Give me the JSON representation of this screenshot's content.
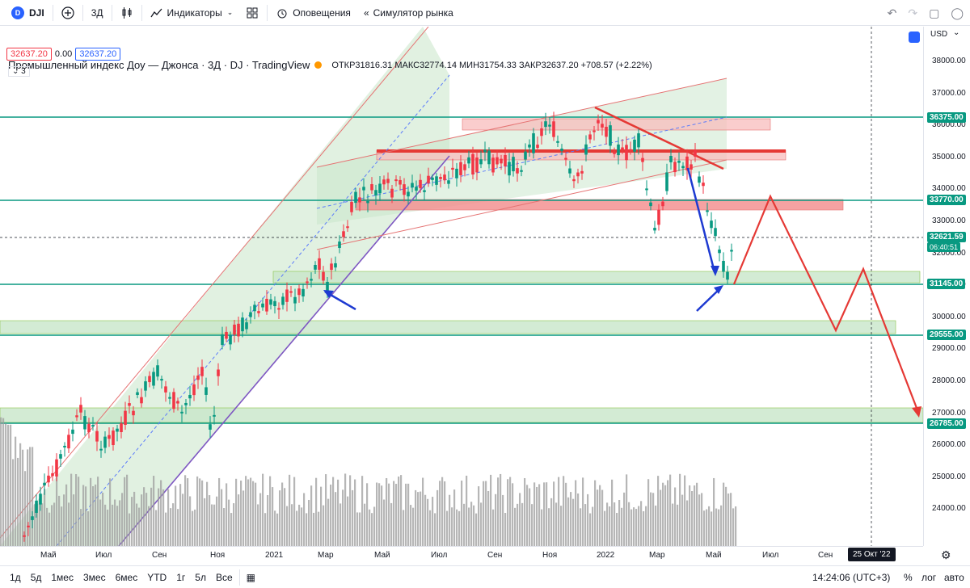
{
  "toolbar": {
    "symbol": "DJI",
    "symbol_badge": "D",
    "interval": "3Д",
    "indicators_label": "Индикаторы",
    "alerts_label": "Оповещения",
    "replay_label": "Симулятор рынка"
  },
  "legend": {
    "title": "Промышленный индекс Доу — Джонса · 3Д · DJ · TradingView",
    "ohlc": "ОТКР31816.31 МАКС32774.14 МИН31754.33 ЗАКР32637.20 +708.57 (+2.22%)",
    "price_box_red": "32637.20",
    "spread": "0.00",
    "price_box_blue": "32637.20",
    "collapse_count": "3"
  },
  "price_axis": {
    "currency": "USD",
    "ticks": [
      "38000.00",
      "37000.00",
      "36000.00",
      "35000.00",
      "34000.00",
      "33000.00",
      "32000.00",
      "31000.00",
      "30000.00",
      "29000.00",
      "28000.00",
      "27000.00",
      "26000.00",
      "25000.00",
      "24000.00"
    ],
    "labels": [
      {
        "text": "36375.00",
        "color": "#089981"
      },
      {
        "text": "33770.00",
        "color": "#089981"
      },
      {
        "text": "32621.59",
        "color": "#089981"
      },
      {
        "text": "31145.00",
        "color": "#089981"
      },
      {
        "text": "29555.00",
        "color": "#089981"
      },
      {
        "text": "26785.00",
        "color": "#089981"
      }
    ],
    "countdown": "06:40:51"
  },
  "time_axis": {
    "labels": [
      "Май",
      "Июл",
      "Сен",
      "Ноя",
      "2021",
      "Мар",
      "Май",
      "Июл",
      "Сен",
      "Ноя",
      "2022",
      "Мар",
      "Май",
      "Июл",
      "Сен"
    ],
    "crosshair_date": "25 Окт '22"
  },
  "bottom": {
    "ranges": [
      "1д",
      "5д",
      "1мес",
      "3мес",
      "6мес",
      "YTD",
      "1г",
      "5л",
      "Все"
    ],
    "clock": "14:24:06 (UTC+3)",
    "percent": "%",
    "log": "лог",
    "auto": "авто"
  },
  "colors": {
    "up": "#089981",
    "down": "#f23645",
    "level": "#089981",
    "zone_green": "#c8e6c9",
    "zone_red": "#f8bcbc",
    "arrow_red": "#e53935",
    "arrow_blue": "#1e3ad1"
  }
}
